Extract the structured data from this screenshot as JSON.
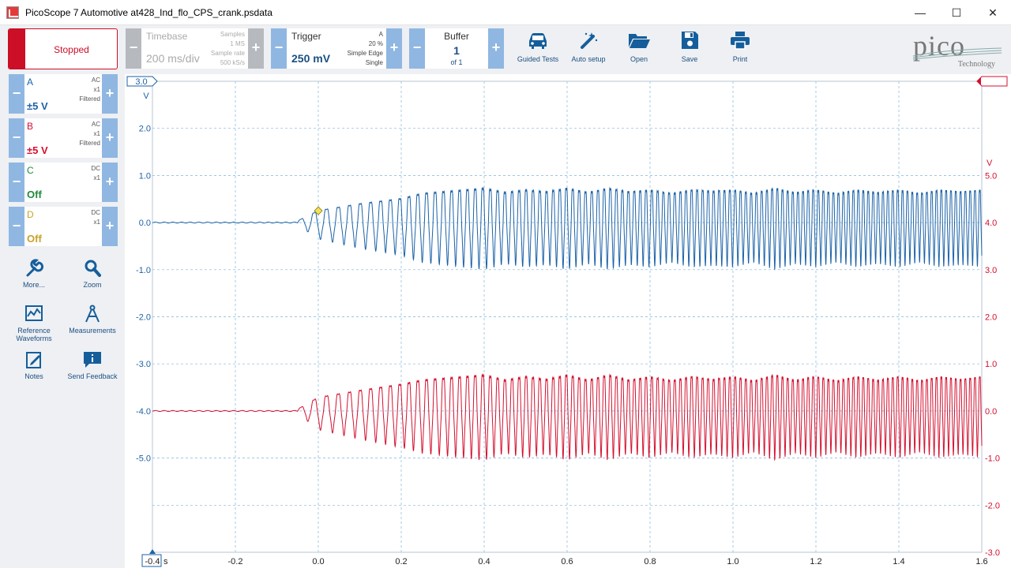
{
  "window": {
    "title": "PicoScope 7 Automotive at428_Ind_flo_CPS_crank.psdata",
    "min_glyph": "—",
    "max_glyph": "☐",
    "close_glyph": "✕"
  },
  "run_state": {
    "label": "Stopped",
    "color": "#cc0e26"
  },
  "channels": [
    {
      "name": "A",
      "range": "±5 V",
      "coupling": "AC",
      "probe": "x1",
      "filter": "Filtered",
      "color": "#1c62a7"
    },
    {
      "name": "B",
      "range": "±5 V",
      "coupling": "AC",
      "probe": "x1",
      "filter": "Filtered",
      "color": "#d3102f"
    },
    {
      "name": "C",
      "range": "Off",
      "coupling": "DC",
      "probe": "x1",
      "filter": "",
      "color": "#1f8a3c"
    },
    {
      "name": "D",
      "range": "Off",
      "coupling": "DC",
      "probe": "x1",
      "filter": "",
      "color": "#c9a227"
    }
  ],
  "tools": [
    {
      "label": "More...",
      "icon": "wrench-icon"
    },
    {
      "label": "Zoom",
      "icon": "magnifier-icon"
    },
    {
      "label": "Reference Waveforms",
      "icon": "reference-waveforms-icon"
    },
    {
      "label": "Measurements",
      "icon": "compass-icon"
    },
    {
      "label": "Notes",
      "icon": "notes-icon"
    },
    {
      "label": "Send Feedback",
      "icon": "feedback-icon"
    }
  ],
  "timebase": {
    "title": "Timebase",
    "value": "200 ms/div",
    "samples_label": "Samples",
    "samples": "1 MS",
    "rate_label": "Sample rate",
    "rate": "500 kS/s"
  },
  "trigger": {
    "title": "Trigger",
    "value": "250 mV",
    "channel": "A",
    "pretrigger": "20 %",
    "type": "Simple Edge",
    "mode": "Single"
  },
  "buffer": {
    "title": "Buffer",
    "current": "1",
    "total": "of 1"
  },
  "toolbar_buttons": [
    {
      "label": "Guided Tests",
      "icon": "car-icon"
    },
    {
      "label": "Auto setup",
      "icon": "magic-wand-icon"
    },
    {
      "label": "Open",
      "icon": "folder-icon"
    },
    {
      "label": "Save",
      "icon": "save-icon"
    },
    {
      "label": "Print",
      "icon": "printer-icon"
    }
  ],
  "logo": {
    "word": "pico",
    "sub": "Technology"
  },
  "chart_data": {
    "type": "line",
    "x_range": [
      -0.4,
      1.6
    ],
    "x_ticks": [
      "-0.4",
      "-0.2",
      "0.0",
      "0.2",
      "0.4",
      "0.6",
      "0.8",
      "1.0",
      "1.2",
      "1.4",
      "1.6"
    ],
    "x_unit": "s",
    "left_axis": {
      "unit": "V",
      "range": [
        -7.0,
        3.0
      ],
      "ticks": [
        "3.0",
        "2.0",
        "1.0",
        "0.0",
        "-1.0",
        "-2.0",
        "-3.0",
        "-4.0",
        "-5.0"
      ]
    },
    "right_axis": {
      "unit": "V",
      "range": [
        -3.0,
        7.0
      ],
      "ticks": [
        "5.0",
        "4.0",
        "3.0",
        "2.0",
        "1.0",
        "0.0",
        "-1.0",
        "-2.0",
        "-3.0"
      ]
    },
    "grid": true,
    "trigger_point": {
      "x": 0.0,
      "y": 0.25
    },
    "series": [
      {
        "name": "A",
        "axis": "left",
        "offset_v": 0.0,
        "color": "#1c62a7",
        "envelope_time": [
          -0.4,
          -0.05,
          0.0,
          0.1,
          0.2,
          0.25,
          0.3,
          0.35,
          0.4,
          0.45,
          0.5,
          0.55,
          0.6,
          0.65,
          0.7,
          0.75,
          0.8,
          0.85,
          0.9,
          0.95,
          1.0,
          1.05,
          1.1,
          1.15,
          1.2,
          1.25,
          1.3,
          1.35,
          1.4,
          1.45,
          1.5,
          1.55,
          1.6
        ],
        "envelope_amp": [
          0.0,
          0.05,
          0.35,
          0.55,
          0.7,
          0.85,
          0.9,
          0.95,
          1.0,
          0.88,
          0.95,
          0.9,
          1.0,
          0.88,
          1.0,
          0.9,
          0.95,
          0.85,
          0.95,
          0.92,
          0.95,
          0.85,
          1.0,
          0.88,
          0.95,
          0.85,
          0.95,
          0.88,
          0.95,
          0.85,
          0.95,
          0.9,
          0.95
        ]
      },
      {
        "name": "B",
        "axis": "left",
        "offset_v": -4.0,
        "color": "#d3102f",
        "envelope_time": [
          -0.4,
          -0.05,
          0.0,
          0.1,
          0.2,
          0.25,
          0.3,
          0.35,
          0.4,
          0.45,
          0.5,
          0.55,
          0.6,
          0.65,
          0.7,
          0.75,
          0.8,
          0.85,
          0.9,
          0.95,
          1.0,
          1.05,
          1.1,
          1.15,
          1.2,
          1.25,
          1.3,
          1.35,
          1.4,
          1.45,
          1.5,
          1.55,
          1.6
        ],
        "envelope_amp": [
          0.0,
          0.05,
          0.4,
          0.6,
          0.78,
          0.9,
          0.95,
          1.0,
          1.05,
          0.9,
          1.0,
          0.92,
          1.05,
          0.9,
          1.05,
          0.9,
          1.0,
          0.88,
          1.0,
          0.92,
          1.0,
          0.88,
          1.05,
          0.9,
          1.0,
          0.88,
          1.0,
          0.9,
          1.0,
          0.88,
          1.0,
          0.92,
          1.0
        ]
      }
    ]
  }
}
